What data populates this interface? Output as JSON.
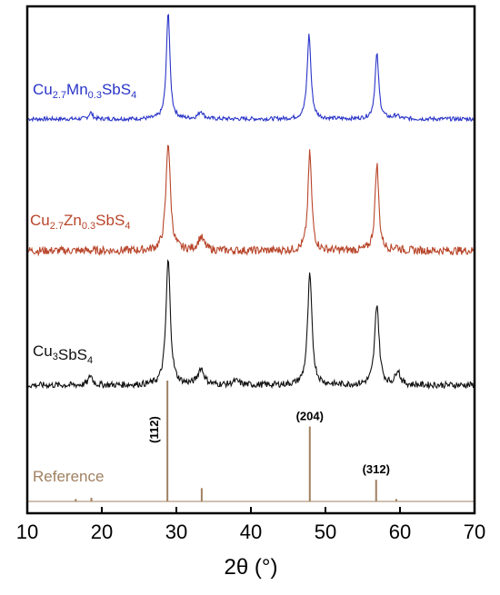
{
  "chart_data": {
    "type": "line",
    "xlabel": "2θ (°)",
    "xlim": [
      10,
      70
    ],
    "xticks": [
      "10",
      "20",
      "30",
      "40",
      "50",
      "60",
      "70"
    ],
    "y_ticks_shown": false,
    "grid": false,
    "series": [
      {
        "label_parts": [
          "Cu",
          "2.7",
          "Mn",
          "0.3",
          "SbS",
          "4"
        ],
        "color": "#2a35c8",
        "peaks": [
          {
            "x": 18.5,
            "h": 0.06,
            "w": 0.3
          },
          {
            "x": 28.9,
            "h": 1.0,
            "w": 0.28
          },
          {
            "x": 33.3,
            "h": 0.07,
            "w": 0.4
          },
          {
            "x": 47.8,
            "h": 0.78,
            "w": 0.3
          },
          {
            "x": 56.9,
            "h": 0.6,
            "w": 0.3
          },
          {
            "x": 59.5,
            "h": 0.03,
            "w": 0.4
          }
        ]
      },
      {
        "label_parts": [
          "Cu",
          "2.7",
          "Zn",
          "0.3",
          "SbS",
          "4"
        ],
        "color": "#b8452a",
        "peaks": [
          {
            "x": 28.9,
            "h": 1.0,
            "w": 0.35
          },
          {
            "x": 33.3,
            "h": 0.12,
            "w": 0.5
          },
          {
            "x": 47.9,
            "h": 0.9,
            "w": 0.3
          },
          {
            "x": 56.9,
            "h": 0.8,
            "w": 0.3
          },
          {
            "x": 59.5,
            "h": 0.03,
            "w": 0.4
          }
        ]
      },
      {
        "label_parts": [
          "Cu",
          "3",
          "",
          "",
          "SbS",
          "4"
        ],
        "color": "#111111",
        "peaks": [
          {
            "x": 18.5,
            "h": 0.08,
            "w": 0.3
          },
          {
            "x": 28.9,
            "h": 1.0,
            "w": 0.35
          },
          {
            "x": 33.3,
            "h": 0.13,
            "w": 0.5
          },
          {
            "x": 38.0,
            "h": 0.03,
            "w": 0.6
          },
          {
            "x": 47.9,
            "h": 0.88,
            "w": 0.35
          },
          {
            "x": 56.9,
            "h": 0.65,
            "w": 0.35
          },
          {
            "x": 59.7,
            "h": 0.12,
            "w": 0.35
          }
        ]
      }
    ],
    "reference": {
      "label": "Reference",
      "color": "#a08060",
      "lines": [
        {
          "x": 16.5,
          "h": 0.02
        },
        {
          "x": 18.6,
          "h": 0.03
        },
        {
          "x": 28.8,
          "h": 1.0,
          "label": "(112)"
        },
        {
          "x": 33.4,
          "h": 0.11
        },
        {
          "x": 47.9,
          "h": 0.62,
          "label": "(204)"
        },
        {
          "x": 56.8,
          "h": 0.18,
          "label": "(312)"
        },
        {
          "x": 59.5,
          "h": 0.02
        }
      ]
    }
  }
}
